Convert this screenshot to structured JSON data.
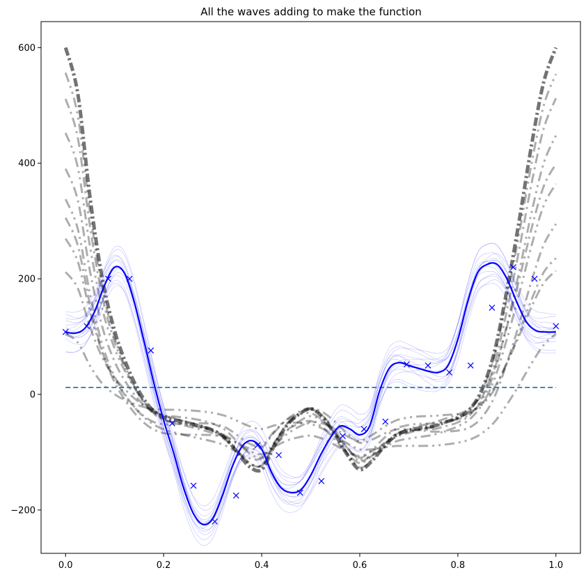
{
  "chart_data": {
    "type": "line",
    "title": "All the waves adding to make the function",
    "xlabel": "",
    "ylabel": "",
    "xlim": [
      -0.05,
      1.05
    ],
    "ylim": [
      -275,
      645
    ],
    "x_ticks": [
      0.0,
      0.2,
      0.4,
      0.6,
      0.8,
      1.0
    ],
    "x_tick_labels": [
      "0.0",
      "0.2",
      "0.4",
      "0.6",
      "0.8",
      "1.0"
    ],
    "y_ticks": [
      -200,
      0,
      200,
      400,
      600
    ],
    "y_tick_labels": [
      "−200",
      "0",
      "200",
      "400",
      "600"
    ],
    "grid": false,
    "colors": {
      "fit_line": "#0000ff",
      "samples": "#0000ff",
      "waves": "#000000",
      "mean_line": "#1f77b4"
    },
    "series": [
      {
        "role": "data-points",
        "marker": "x",
        "color": "#0000ff",
        "x": [
          0.0,
          0.0435,
          0.087,
          0.1304,
          0.1739,
          0.2174,
          0.2609,
          0.3043,
          0.3478,
          0.3913,
          0.4348,
          0.4783,
          0.5217,
          0.5652,
          0.6087,
          0.6522,
          0.6957,
          0.7391,
          0.7826,
          0.8261,
          0.8696,
          0.913,
          0.9565,
          1.0
        ],
        "y": [
          108,
          118,
          200,
          200,
          76,
          -50,
          -158,
          -220,
          -175,
          -88,
          -105,
          -170,
          -150,
          -72,
          -60,
          -47,
          52,
          50,
          38,
          50,
          150,
          220,
          200,
          118
        ]
      },
      {
        "role": "fit-line",
        "color": "#0000ff",
        "x": [
          0.0,
          0.02,
          0.04,
          0.06,
          0.08,
          0.1,
          0.12,
          0.14,
          0.16,
          0.18,
          0.2,
          0.22,
          0.24,
          0.26,
          0.28,
          0.3,
          0.32,
          0.34,
          0.36,
          0.38,
          0.4,
          0.42,
          0.44,
          0.46,
          0.48,
          0.5,
          0.52,
          0.54,
          0.56,
          0.58,
          0.6,
          0.62,
          0.64,
          0.66,
          0.68,
          0.7,
          0.72,
          0.74,
          0.76,
          0.78,
          0.8,
          0.82,
          0.84,
          0.86,
          0.88,
          0.9,
          0.92,
          0.94,
          0.96,
          0.98,
          1.0
        ],
        "y": [
          108,
          106,
          115,
          145,
          190,
          220,
          210,
          160,
          92,
          20,
          -45,
          -100,
          -160,
          -205,
          -225,
          -215,
          -175,
          -125,
          -90,
          -80,
          -95,
          -135,
          -162,
          -170,
          -165,
          -140,
          -105,
          -75,
          -55,
          -60,
          -70,
          -55,
          5,
          45,
          55,
          50,
          45,
          40,
          38,
          50,
          95,
          160,
          210,
          225,
          225,
          200,
          160,
          125,
          110,
          108,
          108
        ]
      },
      {
        "role": "mean-line",
        "style": "dashed",
        "color": "#1f77b4",
        "x": [
          0.0,
          1.0
        ],
        "y": [
          12,
          12
        ]
      },
      {
        "role": "wave-sum",
        "style": "thick-dashdot",
        "color": "#000000",
        "x": [
          0.0,
          0.025,
          0.05,
          0.075,
          0.1,
          0.125,
          0.15,
          0.175,
          0.2,
          0.225,
          0.25,
          0.275,
          0.3,
          0.325,
          0.35,
          0.375,
          0.4,
          0.425,
          0.45,
          0.475,
          0.5,
          0.525,
          0.55,
          0.575,
          0.6,
          0.625,
          0.65,
          0.675,
          0.7,
          0.725,
          0.75,
          0.775,
          0.8,
          0.825,
          0.85,
          0.875,
          0.9,
          0.925,
          0.95,
          0.975,
          1.0
        ],
        "y": [
          600,
          520,
          340,
          200,
          110,
          50,
          5,
          -25,
          -40,
          -45,
          -50,
          -55,
          -62,
          -75,
          -100,
          -125,
          -130,
          -90,
          -55,
          -35,
          -25,
          -40,
          -70,
          -105,
          -130,
          -115,
          -90,
          -70,
          -62,
          -58,
          -55,
          -48,
          -40,
          -25,
          10,
          75,
          180,
          300,
          430,
          540,
          600
        ]
      }
    ]
  }
}
